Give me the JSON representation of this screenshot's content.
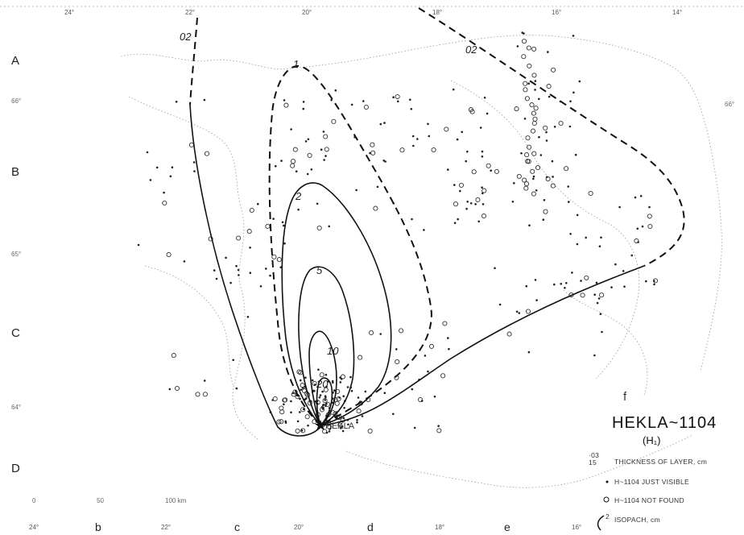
{
  "map": {
    "longitude_labels_top": [
      "24°",
      "22°",
      "20°",
      "18°",
      "16°",
      "14°"
    ],
    "longitude_labels_bottom": [
      "24°",
      "22°",
      "20°",
      "18°",
      "16°"
    ],
    "latitude_labels": [
      "66°",
      "66°",
      "65°",
      "64°"
    ],
    "row_labels": [
      "A",
      "B",
      "C",
      "D"
    ],
    "column_labels": [
      "b",
      "c",
      "d",
      "e"
    ],
    "isopachs": [
      {
        "value": 0.2,
        "label": "02",
        "label2": "02",
        "style": "dashed/solid"
      },
      {
        "value": 1,
        "label": "1",
        "style": "dashed"
      },
      {
        "value": 2,
        "label": "2",
        "style": "solid"
      },
      {
        "value": 5,
        "label": "5",
        "style": "solid"
      },
      {
        "value": 10,
        "label": "10",
        "style": "solid"
      },
      {
        "value": 20,
        "label": "20",
        "style": "solid"
      }
    ],
    "volcano_label": "HEKLA",
    "scale_bar": {
      "labels": [
        "0",
        "50",
        "100 km"
      ]
    },
    "panel_label": "f"
  },
  "legend": {
    "title": "HEKLA~1104",
    "subtitle": "(H₁)",
    "sample_values": "·03\n15",
    "thickness_label": "THICKNESS OF LAYER, cm",
    "just_visible_label": "H~1104 JUST VISIBLE",
    "not_found_label": "H~1104 NOT FOUND",
    "isopach_label": "ISOPACH, cm",
    "isopach_sample": "2"
  }
}
